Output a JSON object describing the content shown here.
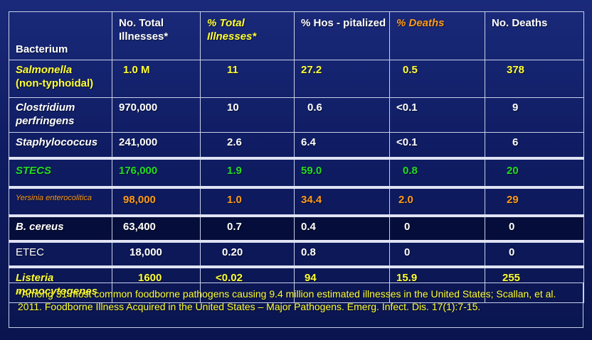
{
  "headers": {
    "bacterium": "Bacterium",
    "total_illnesses": "No. Total Illnesses*",
    "pct_total_illnesses": "% Total Illnesses*",
    "pct_hospitalized": "% Hos - pitalized",
    "pct_deaths": "% Deaths",
    "no_deaths": "No. Deaths"
  },
  "rows": [
    {
      "name": "Salmonella",
      "name_suffix": "(non-typhoidal)",
      "total": "1.0 M",
      "pct_total": "11",
      "hosp": "27.2",
      "pct_deaths": "0.5",
      "deaths": "378"
    },
    {
      "name": "Clostridium perfringens",
      "total": "970,000",
      "pct_total": "10",
      "hosp": "0.6",
      "pct_deaths": "<0.1",
      "deaths": "9"
    },
    {
      "name": "Staphylococcus",
      "total": "241,000",
      "pct_total": "2.6",
      "hosp": "6.4",
      "pct_deaths": "<0.1",
      "deaths": "6"
    },
    {
      "name": "STECS",
      "total": "176,000",
      "pct_total": "1.9",
      "hosp": "59.0",
      "pct_deaths": "0.8",
      "deaths": "20"
    },
    {
      "name": "Yersinia enterocolitica",
      "total": "98,000",
      "pct_total": "1.0",
      "hosp": "34.4",
      "pct_deaths": "2.0",
      "deaths": "29"
    },
    {
      "name": "B. cereus",
      "total": "63,400",
      "pct_total": "0.7",
      "hosp": "0.4",
      "pct_deaths": "0",
      "deaths": "0"
    },
    {
      "name": "ETEC",
      "total": "18,000",
      "pct_total": "0.20",
      "hosp": "0.8",
      "pct_deaths": "0",
      "deaths": "0"
    },
    {
      "name": "Listeria monocytogenes",
      "total": "1600",
      "pct_total": "<0.02",
      "hosp": "94",
      "pct_deaths": "15.9",
      "deaths": "255"
    }
  ],
  "footnote": "*Among 31 most common foodborne pathogens causing 9.4 million estimated illnesses in the United States; Scallan, et al. 2011. Foodborne Illness Acquired in the United States – Major Pathogens.  Emerg. Infect. Dis. 17(1):7-15.",
  "colors": {
    "background": "#0f1c62",
    "yellow": "#ffff33",
    "green": "#22dd22",
    "orange": "#ff9a1a",
    "white": "#ffffff"
  }
}
